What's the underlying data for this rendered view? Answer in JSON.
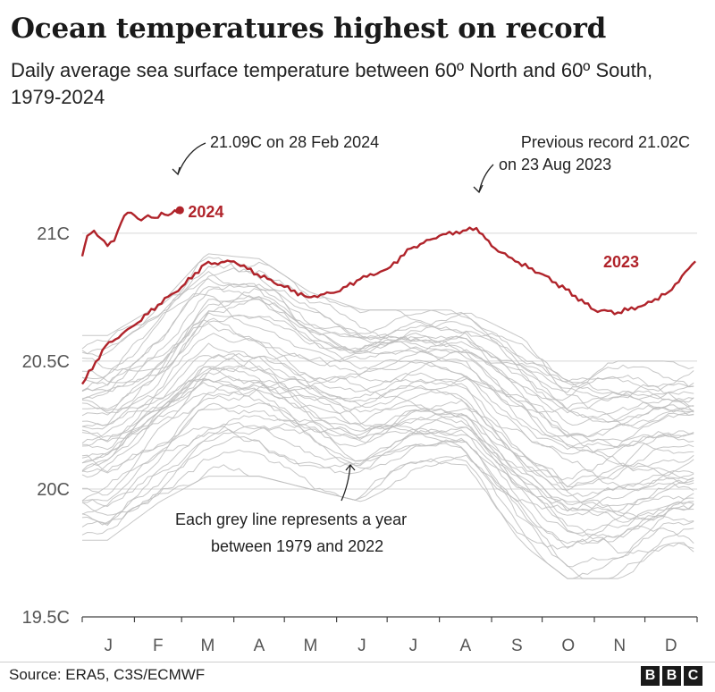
{
  "title": "Ocean temperatures highest on record",
  "subtitle": "Daily average sea surface temperature between 60º North and 60º South, 1979-2024",
  "source": "Source: ERA5, C3S/ECMWF",
  "logo_text": "BBC",
  "colors": {
    "highlight": "#b0232a",
    "grey_lines": "#bdbdbd",
    "grid": "#d7d7d7",
    "text": "#222222"
  },
  "chart_data": {
    "type": "line",
    "title": "Ocean temperatures highest on record",
    "subtitle": "Daily average sea surface temperature between 60º North and 60º South, 1979-2024",
    "y_unit": "C",
    "ylim": [
      19.5,
      21.3
    ],
    "y_ticks": [
      19.5,
      20,
      20.5,
      21
    ],
    "y_tick_labels": [
      "19.5C",
      "20C",
      "20.5C",
      "21C"
    ],
    "x_ticks": [
      "J",
      "F",
      "M",
      "A",
      "M",
      "J",
      "J",
      "A",
      "S",
      "O",
      "N",
      "D"
    ],
    "grid": "horizontal",
    "series": [
      {
        "name": "2024",
        "color": "#b0232a",
        "x": [
          "1 Jan",
          "4 Jan",
          "8 Jan",
          "12 Jan",
          "16 Jan",
          "20 Jan",
          "24 Jan",
          "28 Jan",
          "1 Feb",
          "5 Feb",
          "9 Feb",
          "13 Feb",
          "17 Feb",
          "21 Feb",
          "25 Feb",
          "28 Feb"
        ],
        "y": [
          20.91,
          20.99,
          21.01,
          20.98,
          20.95,
          20.97,
          21.04,
          21.08,
          21.07,
          21.05,
          21.07,
          21.06,
          21.08,
          21.07,
          21.09,
          21.09
        ]
      },
      {
        "name": "2023",
        "color": "#b0232a",
        "x": [
          "1 Jan",
          "15 Jan",
          "1 Feb",
          "15 Feb",
          "1 Mar",
          "15 Mar",
          "1 Apr",
          "15 Apr",
          "1 May",
          "15 May",
          "1 Jun",
          "15 Jun",
          "1 Jul",
          "15 Jul",
          "1 Aug",
          "15 Aug",
          "23 Aug",
          "1 Sep",
          "15 Sep",
          "1 Oct",
          "15 Oct",
          "1 Nov",
          "15 Nov",
          "1 Dec",
          "15 Dec",
          "31 Dec"
        ],
        "y": [
          20.41,
          20.56,
          20.64,
          20.72,
          20.79,
          20.88,
          20.89,
          20.84,
          20.79,
          20.75,
          20.77,
          20.82,
          20.86,
          20.94,
          20.99,
          21.01,
          21.02,
          20.95,
          20.89,
          20.84,
          20.78,
          20.7,
          20.69,
          20.72,
          20.77,
          20.89
        ]
      }
    ],
    "background_series": {
      "label": "1979-2022",
      "count": 44,
      "color": "#bdbdbd",
      "range_by_month": {
        "x": [
          "Jan",
          "Feb",
          "Mar",
          "Apr",
          "May",
          "Jun",
          "Jul",
          "Aug",
          "Sep",
          "Oct",
          "Nov",
          "Dec"
        ],
        "low": [
          19.8,
          19.95,
          20.05,
          20.05,
          20.0,
          19.95,
          20.05,
          20.05,
          19.8,
          19.65,
          19.65,
          19.75
        ],
        "high": [
          20.6,
          20.72,
          20.92,
          20.9,
          20.77,
          20.7,
          20.7,
          20.7,
          20.6,
          20.5,
          20.5,
          20.5
        ]
      }
    },
    "annotations": [
      {
        "key": "peak2024",
        "text": "21.09C on 28 Feb 2024",
        "x": "28 Feb 2024",
        "y": 21.09
      },
      {
        "key": "record2023_line1",
        "text": "Previous record 21.02C",
        "x": "23 Aug 2023",
        "y": 21.02
      },
      {
        "key": "record2023_line2",
        "text": "on 23 Aug 2023",
        "x": "23 Aug 2023",
        "y": 21.02
      },
      {
        "key": "grey_note_line1",
        "text": "Each grey line represents a year"
      },
      {
        "key": "grey_note_line2",
        "text": "between 1979 and 2022"
      }
    ],
    "series_labels": {
      "s2024": "2024",
      "s2023": "2023"
    }
  }
}
